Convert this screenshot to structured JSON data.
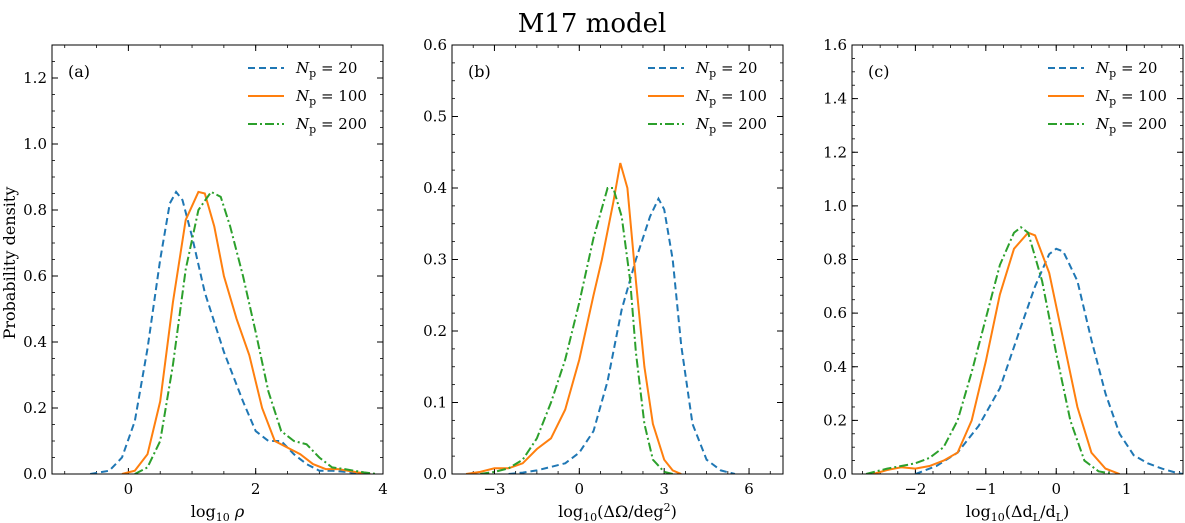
{
  "figure": {
    "title": "M17 model",
    "ylabel": "Probability density"
  },
  "chart_data": [
    {
      "type": "line",
      "panel_label": "(a)",
      "xlabel": {
        "base": "log",
        "sub": "10",
        "rest": " ρ"
      },
      "xlim": [
        -1.2,
        4.0
      ],
      "ylim": [
        0,
        1.3
      ],
      "xticks": [
        0,
        2,
        4
      ],
      "yticks": [
        0.0,
        0.2,
        0.4,
        0.6,
        0.8,
        1.0,
        1.2
      ],
      "ytick_labels": [
        "0.0",
        "0.2",
        "0.4",
        "0.6",
        "0.8",
        "1.0",
        "1.2"
      ],
      "legend": "top-right",
      "series": [
        {
          "label_main": "N",
          "label_sub": "p",
          "label_eq": " = 20",
          "color": "#1f77b4",
          "style": "dashed",
          "points": [
            [
              -0.6,
              0
            ],
            [
              -0.3,
              0.01
            ],
            [
              -0.1,
              0.05
            ],
            [
              0.1,
              0.16
            ],
            [
              0.3,
              0.38
            ],
            [
              0.5,
              0.65
            ],
            [
              0.65,
              0.82
            ],
            [
              0.75,
              0.855
            ],
            [
              0.85,
              0.83
            ],
            [
              1.0,
              0.72
            ],
            [
              1.2,
              0.55
            ],
            [
              1.5,
              0.37
            ],
            [
              1.8,
              0.22
            ],
            [
              2.0,
              0.13
            ],
            [
              2.2,
              0.1
            ],
            [
              2.4,
              0.1
            ],
            [
              2.6,
              0.06
            ],
            [
              2.8,
              0.03
            ],
            [
              3.0,
              0.01
            ],
            [
              3.2,
              0.01
            ],
            [
              3.5,
              0.005
            ],
            [
              3.8,
              0
            ]
          ]
        },
        {
          "label_main": "N",
          "label_sub": "p",
          "label_eq": " = 100",
          "color": "#ff7f0e",
          "style": "solid",
          "points": [
            [
              -0.1,
              0
            ],
            [
              0.1,
              0.01
            ],
            [
              0.3,
              0.06
            ],
            [
              0.5,
              0.22
            ],
            [
              0.7,
              0.52
            ],
            [
              0.9,
              0.77
            ],
            [
              1.1,
              0.855
            ],
            [
              1.2,
              0.85
            ],
            [
              1.35,
              0.75
            ],
            [
              1.5,
              0.6
            ],
            [
              1.7,
              0.47
            ],
            [
              1.9,
              0.36
            ],
            [
              2.1,
              0.2
            ],
            [
              2.3,
              0.1
            ],
            [
              2.5,
              0.08
            ],
            [
              2.7,
              0.06
            ],
            [
              2.9,
              0.03
            ],
            [
              3.1,
              0.015
            ],
            [
              3.3,
              0.015
            ],
            [
              3.6,
              0.005
            ],
            [
              3.8,
              0
            ]
          ]
        },
        {
          "label_main": "N",
          "label_sub": "p",
          "label_eq": " = 200",
          "color": "#2ca02c",
          "style": "dashdot",
          "points": [
            [
              0.1,
              0
            ],
            [
              0.3,
              0.02
            ],
            [
              0.5,
              0.1
            ],
            [
              0.7,
              0.33
            ],
            [
              0.9,
              0.62
            ],
            [
              1.1,
              0.8
            ],
            [
              1.3,
              0.855
            ],
            [
              1.45,
              0.84
            ],
            [
              1.6,
              0.75
            ],
            [
              1.8,
              0.6
            ],
            [
              2.0,
              0.43
            ],
            [
              2.2,
              0.25
            ],
            [
              2.4,
              0.13
            ],
            [
              2.6,
              0.1
            ],
            [
              2.8,
              0.09
            ],
            [
              3.0,
              0.05
            ],
            [
              3.2,
              0.02
            ],
            [
              3.4,
              0.015
            ],
            [
              3.7,
              0.005
            ],
            [
              3.9,
              0
            ]
          ]
        }
      ]
    },
    {
      "type": "line",
      "panel_label": "(b)",
      "xlabel": {
        "base": "log",
        "sub": "10",
        "rest": "(ΔΩ/deg",
        "sup": "2",
        "close": ")"
      },
      "xlim": [
        -4.5,
        7.2
      ],
      "ylim": [
        0,
        0.6
      ],
      "xticks": [
        -3,
        0,
        3,
        6
      ],
      "xtick_labels": [
        "−3",
        "0",
        "3",
        "6"
      ],
      "yticks": [
        0.0,
        0.1,
        0.2,
        0.3,
        0.4,
        0.5,
        0.6
      ],
      "ytick_labels": [
        "0.0",
        "0.1",
        "0.2",
        "0.3",
        "0.4",
        "0.5",
        "0.6"
      ],
      "legend": "top-right",
      "series": [
        {
          "label_main": "N",
          "label_sub": "p",
          "label_eq": " = 20",
          "color": "#1f77b4",
          "style": "dashed",
          "points": [
            [
              -2.5,
              0
            ],
            [
              -2.0,
              0.002
            ],
            [
              -1.5,
              0.005
            ],
            [
              -1.0,
              0.01
            ],
            [
              -0.5,
              0.015
            ],
            [
              0.0,
              0.03
            ],
            [
              0.5,
              0.06
            ],
            [
              1.0,
              0.13
            ],
            [
              1.5,
              0.23
            ],
            [
              2.0,
              0.3
            ],
            [
              2.5,
              0.36
            ],
            [
              2.8,
              0.385
            ],
            [
              3.0,
              0.37
            ],
            [
              3.3,
              0.3
            ],
            [
              3.6,
              0.18
            ],
            [
              4.0,
              0.07
            ],
            [
              4.5,
              0.02
            ],
            [
              5.0,
              0.005
            ],
            [
              5.5,
              0
            ]
          ]
        },
        {
          "label_main": "N",
          "label_sub": "p",
          "label_eq": " = 100",
          "color": "#ff7f0e",
          "style": "solid",
          "points": [
            [
              -4.0,
              0
            ],
            [
              -3.5,
              0.003
            ],
            [
              -3.0,
              0.008
            ],
            [
              -2.5,
              0.008
            ],
            [
              -2.0,
              0.015
            ],
            [
              -1.5,
              0.035
            ],
            [
              -1.0,
              0.05
            ],
            [
              -0.5,
              0.09
            ],
            [
              0.0,
              0.16
            ],
            [
              0.5,
              0.25
            ],
            [
              0.8,
              0.3
            ],
            [
              1.0,
              0.34
            ],
            [
              1.2,
              0.38
            ],
            [
              1.45,
              0.435
            ],
            [
              1.7,
              0.4
            ],
            [
              2.0,
              0.27
            ],
            [
              2.3,
              0.15
            ],
            [
              2.6,
              0.07
            ],
            [
              3.0,
              0.02
            ],
            [
              3.3,
              0.005
            ],
            [
              3.6,
              0
            ]
          ]
        },
        {
          "label_main": "N",
          "label_sub": "p",
          "label_eq": " = 200",
          "color": "#2ca02c",
          "style": "dashdot",
          "points": [
            [
              -3.5,
              0
            ],
            [
              -3.0,
              0.003
            ],
            [
              -2.5,
              0.008
            ],
            [
              -2.0,
              0.02
            ],
            [
              -1.5,
              0.05
            ],
            [
              -1.0,
              0.1
            ],
            [
              -0.5,
              0.16
            ],
            [
              0.0,
              0.24
            ],
            [
              0.5,
              0.33
            ],
            [
              1.0,
              0.4
            ],
            [
              1.2,
              0.4
            ],
            [
              1.5,
              0.36
            ],
            [
              1.8,
              0.27
            ],
            [
              2.0,
              0.17
            ],
            [
              2.3,
              0.07
            ],
            [
              2.6,
              0.02
            ],
            [
              3.0,
              0.003
            ],
            [
              3.3,
              0
            ]
          ]
        }
      ]
    },
    {
      "type": "line",
      "panel_label": "(c)",
      "xlabel": {
        "base": "log",
        "sub": "10",
        "rest": "(Δd",
        "sub2": "L",
        "mid": "/d",
        "sub3": "L",
        "close": ")"
      },
      "xlim": [
        -2.9,
        1.8
      ],
      "ylim": [
        0,
        1.6
      ],
      "xticks": [
        -2,
        -1,
        0,
        1
      ],
      "xtick_labels": [
        "−2",
        "−1",
        "0",
        "1"
      ],
      "yticks": [
        0.0,
        0.2,
        0.4,
        0.6,
        0.8,
        1.0,
        1.2,
        1.4,
        1.6
      ],
      "ytick_labels": [
        "0.0",
        "0.2",
        "0.4",
        "0.6",
        "0.8",
        "1.0",
        "1.2",
        "1.4",
        "1.6"
      ],
      "legend": "top-right",
      "series": [
        {
          "label_main": "N",
          "label_sub": "p",
          "label_eq": " = 20",
          "color": "#1f77b4",
          "style": "dashed",
          "points": [
            [
              -2.0,
              0
            ],
            [
              -1.7,
              0.03
            ],
            [
              -1.4,
              0.08
            ],
            [
              -1.1,
              0.18
            ],
            [
              -0.8,
              0.32
            ],
            [
              -0.5,
              0.55
            ],
            [
              -0.3,
              0.7
            ],
            [
              -0.1,
              0.82
            ],
            [
              0.0,
              0.84
            ],
            [
              0.1,
              0.83
            ],
            [
              0.3,
              0.72
            ],
            [
              0.5,
              0.5
            ],
            [
              0.7,
              0.3
            ],
            [
              0.9,
              0.15
            ],
            [
              1.1,
              0.07
            ],
            [
              1.3,
              0.04
            ],
            [
              1.5,
              0.02
            ],
            [
              1.7,
              0.005
            ],
            [
              1.8,
              0
            ]
          ]
        },
        {
          "label_main": "N",
          "label_sub": "p",
          "label_eq": " = 100",
          "color": "#ff7f0e",
          "style": "solid",
          "points": [
            [
              -2.6,
              0
            ],
            [
              -2.4,
              0.015
            ],
            [
              -2.2,
              0.025
            ],
            [
              -2.0,
              0.02
            ],
            [
              -1.8,
              0.03
            ],
            [
              -1.6,
              0.05
            ],
            [
              -1.4,
              0.08
            ],
            [
              -1.2,
              0.2
            ],
            [
              -1.0,
              0.42
            ],
            [
              -0.8,
              0.67
            ],
            [
              -0.6,
              0.84
            ],
            [
              -0.4,
              0.9
            ],
            [
              -0.3,
              0.89
            ],
            [
              -0.1,
              0.75
            ],
            [
              0.1,
              0.5
            ],
            [
              0.3,
              0.25
            ],
            [
              0.5,
              0.08
            ],
            [
              0.7,
              0.02
            ],
            [
              0.9,
              0
            ]
          ]
        },
        {
          "label_main": "N",
          "label_sub": "p",
          "label_eq": " = 200",
          "color": "#2ca02c",
          "style": "dashdot",
          "points": [
            [
              -2.7,
              0
            ],
            [
              -2.4,
              0.02
            ],
            [
              -2.2,
              0.03
            ],
            [
              -2.0,
              0.04
            ],
            [
              -1.8,
              0.06
            ],
            [
              -1.6,
              0.1
            ],
            [
              -1.4,
              0.2
            ],
            [
              -1.2,
              0.38
            ],
            [
              -1.0,
              0.58
            ],
            [
              -0.8,
              0.78
            ],
            [
              -0.6,
              0.9
            ],
            [
              -0.5,
              0.92
            ],
            [
              -0.4,
              0.9
            ],
            [
              -0.2,
              0.72
            ],
            [
              0.0,
              0.45
            ],
            [
              0.2,
              0.2
            ],
            [
              0.4,
              0.05
            ],
            [
              0.6,
              0.01
            ],
            [
              0.8,
              0
            ]
          ]
        }
      ]
    }
  ]
}
